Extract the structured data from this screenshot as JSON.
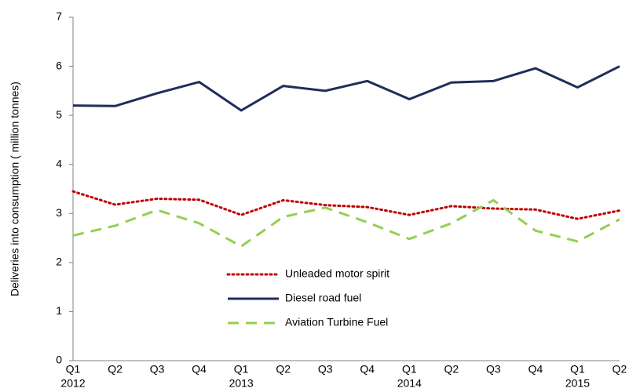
{
  "chart_data": {
    "type": "line",
    "y_label": "Deliveries into consumption ( million tonnes)",
    "categories": [
      "Q1",
      "Q2",
      "Q3",
      "Q4",
      "Q1",
      "Q2",
      "Q3",
      "Q4",
      "Q1",
      "Q2",
      "Q3",
      "Q4",
      "Q1",
      "Q2"
    ],
    "category_groups": [
      "2012",
      null,
      null,
      null,
      "2013",
      null,
      null,
      null,
      "2014",
      null,
      null,
      null,
      "2015",
      null
    ],
    "series": [
      {
        "name": "Unleaded motor spirit",
        "color": "#c00000",
        "dash": "dotted",
        "values": [
          3.45,
          3.18,
          3.3,
          3.28,
          2.97,
          3.27,
          3.17,
          3.13,
          2.97,
          3.15,
          3.1,
          3.08,
          2.89,
          3.06
        ]
      },
      {
        "name": "Diesel road fuel",
        "color": "#1f2d5c",
        "dash": "solid",
        "values": [
          5.2,
          5.19,
          5.45,
          5.68,
          5.1,
          5.6,
          5.5,
          5.7,
          5.33,
          5.67,
          5.7,
          5.96,
          5.57,
          6.0
        ]
      },
      {
        "name": "Aviation Turbine Fuel",
        "color": "#92d050",
        "dash": "dashed",
        "values": [
          2.55,
          2.75,
          3.07,
          2.8,
          2.33,
          2.93,
          3.12,
          2.82,
          2.48,
          2.8,
          3.27,
          2.65,
          2.43,
          2.88
        ]
      }
    ],
    "ylim": [
      0,
      7
    ],
    "yticks": [
      0,
      1,
      2,
      3,
      4,
      5,
      6,
      7
    ],
    "grid": false
  }
}
